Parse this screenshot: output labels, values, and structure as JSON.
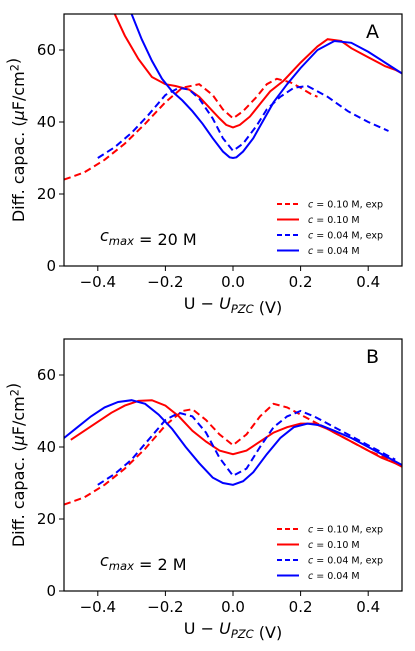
{
  "chart_data": [
    {
      "type": "line",
      "panel_label": "A",
      "annotation": "c_max = 20 M",
      "xlabel": "U − U_PZC (V)",
      "ylabel": "Diff. capac. (μF/cm²)",
      "xlim": [
        -0.5,
        0.5
      ],
      "ylim": [
        0,
        70
      ],
      "xticks": [
        -0.4,
        -0.2,
        0.0,
        0.2,
        0.4
      ],
      "yticks": [
        0,
        20,
        40,
        60
      ],
      "legend_position": "lower-right",
      "grid": false,
      "series": [
        {
          "name": "c = 0.10 M, exp",
          "color": "#ff0000",
          "dash": "dashed",
          "x": [
            -0.5,
            -0.44,
            -0.38,
            -0.32,
            -0.26,
            -0.2,
            -0.15,
            -0.1,
            -0.06,
            -0.03,
            0.0,
            0.03,
            0.07,
            0.1,
            0.13,
            0.17,
            0.2,
            0.23,
            0.25
          ],
          "y": [
            24,
            26,
            29.5,
            34,
            39.5,
            45.5,
            49.5,
            50.5,
            47.5,
            43.5,
            41,
            43,
            47,
            50.5,
            52,
            51,
            49.5,
            47.8,
            47
          ]
        },
        {
          "name": "c = 0.10 M",
          "color": "#ff0000",
          "dash": "solid",
          "x": [
            -0.35,
            -0.32,
            -0.28,
            -0.24,
            -0.2,
            -0.17,
            -0.13,
            -0.1,
            -0.07,
            -0.04,
            -0.02,
            0.0,
            0.02,
            0.05,
            0.08,
            0.11,
            0.15,
            0.2,
            0.25,
            0.28,
            0.32,
            0.35,
            0.4,
            0.45,
            0.48,
            0.5
          ],
          "y": [
            70,
            64,
            57.5,
            52.5,
            50.5,
            50,
            49,
            47,
            44,
            41,
            39.2,
            38.5,
            39.2,
            41.5,
            45,
            48.5,
            51.5,
            56.5,
            61,
            63,
            62.5,
            60.5,
            58,
            55.5,
            54.5,
            53.5
          ]
        },
        {
          "name": "c = 0.04 M, exp",
          "color": "#0000ff",
          "dash": "dashed",
          "x": [
            -0.4,
            -0.35,
            -0.3,
            -0.25,
            -0.2,
            -0.16,
            -0.13,
            -0.1,
            -0.06,
            -0.03,
            0.0,
            0.03,
            0.07,
            0.1,
            0.14,
            0.18,
            0.22,
            0.28,
            0.34,
            0.4,
            0.46
          ],
          "y": [
            30,
            33,
            37,
            42,
            47.5,
            49.5,
            49,
            46.5,
            41,
            35.5,
            32,
            34,
            39,
            43.5,
            47,
            49.5,
            50,
            47,
            43,
            40,
            37.5
          ]
        },
        {
          "name": "c = 0.04 M",
          "color": "#0000ff",
          "dash": "solid",
          "x": [
            -0.3,
            -0.27,
            -0.24,
            -0.21,
            -0.18,
            -0.15,
            -0.12,
            -0.09,
            -0.06,
            -0.03,
            -0.01,
            0.0,
            0.01,
            0.03,
            0.06,
            0.09,
            0.12,
            0.16,
            0.2,
            0.25,
            0.3,
            0.35,
            0.4,
            0.45,
            0.5
          ],
          "y": [
            70,
            63,
            57,
            52,
            48.5,
            46,
            43,
            39.5,
            35.5,
            31.8,
            30.2,
            30,
            30.2,
            31.8,
            35.5,
            40.5,
            45.5,
            50.5,
            55,
            60,
            62.5,
            62,
            59.5,
            56.5,
            53.5
          ]
        }
      ]
    },
    {
      "type": "line",
      "panel_label": "B",
      "annotation": "c_max = 2 M",
      "xlabel": "U − U_PZC (V)",
      "ylabel": "Diff. capac. (μF/cm²)",
      "xlim": [
        -0.5,
        0.5
      ],
      "ylim": [
        0,
        70
      ],
      "xticks": [
        -0.4,
        -0.2,
        0.0,
        0.2,
        0.4
      ],
      "yticks": [
        0,
        20,
        40,
        60
      ],
      "legend_position": "lower-right",
      "grid": false,
      "series": [
        {
          "name": "c = 0.10 M, exp",
          "color": "#ff0000",
          "dash": "dashed",
          "x": [
            -0.5,
            -0.44,
            -0.38,
            -0.32,
            -0.26,
            -0.2,
            -0.15,
            -0.12,
            -0.08,
            -0.04,
            0.0,
            0.04,
            0.08,
            0.12,
            0.16,
            0.2,
            0.25,
            0.3,
            0.35,
            0.4,
            0.45,
            0.48
          ],
          "y": [
            24,
            26,
            29.5,
            34,
            39.5,
            46,
            50,
            50.5,
            47.5,
            43.5,
            40.5,
            43.5,
            48.5,
            52,
            51,
            49,
            46.5,
            44,
            41.5,
            39,
            37,
            35.5
          ]
        },
        {
          "name": "c = 0.10 M",
          "color": "#ff0000",
          "dash": "solid",
          "x": [
            -0.48,
            -0.44,
            -0.4,
            -0.36,
            -0.32,
            -0.28,
            -0.24,
            -0.2,
            -0.16,
            -0.12,
            -0.08,
            -0.04,
            0.0,
            0.04,
            0.08,
            0.12,
            0.16,
            0.2,
            0.24,
            0.28,
            0.32,
            0.36,
            0.4,
            0.44,
            0.48,
            0.5
          ],
          "y": [
            42,
            44.5,
            47,
            49.5,
            51.5,
            52.8,
            53,
            51.5,
            48.5,
            44.5,
            41.5,
            39,
            38,
            39,
            41.5,
            44,
            45.5,
            46.5,
            46.5,
            45,
            43,
            41,
            39,
            37,
            35.5,
            34.5
          ]
        },
        {
          "name": "c = 0.04 M, exp",
          "color": "#0000ff",
          "dash": "dashed",
          "x": [
            -0.4,
            -0.35,
            -0.3,
            -0.25,
            -0.2,
            -0.16,
            -0.12,
            -0.08,
            -0.04,
            0.0,
            0.04,
            0.08,
            0.12,
            0.16,
            0.2,
            0.24,
            0.3,
            0.35,
            0.4,
            0.45,
            0.48
          ],
          "y": [
            29.5,
            32.5,
            36.5,
            42,
            47.5,
            49.5,
            48.5,
            44,
            37,
            32,
            34,
            40,
            45.5,
            48.5,
            50,
            48.5,
            45.5,
            43,
            40.5,
            38,
            36.5
          ]
        },
        {
          "name": "c = 0.04 M",
          "color": "#0000ff",
          "dash": "solid",
          "x": [
            -0.5,
            -0.46,
            -0.42,
            -0.38,
            -0.34,
            -0.3,
            -0.26,
            -0.22,
            -0.18,
            -0.14,
            -0.1,
            -0.06,
            -0.03,
            0.0,
            0.03,
            0.06,
            0.1,
            0.14,
            0.18,
            0.22,
            0.26,
            0.3,
            0.35,
            0.4,
            0.45,
            0.5
          ],
          "y": [
            42.5,
            45.5,
            48.5,
            51,
            52.5,
            53,
            52,
            49,
            45,
            40,
            35.5,
            31.5,
            30,
            29.5,
            30.5,
            33,
            38,
            42.5,
            45.5,
            46.5,
            46,
            44.5,
            42.5,
            40,
            37.5,
            35
          ]
        }
      ]
    }
  ]
}
